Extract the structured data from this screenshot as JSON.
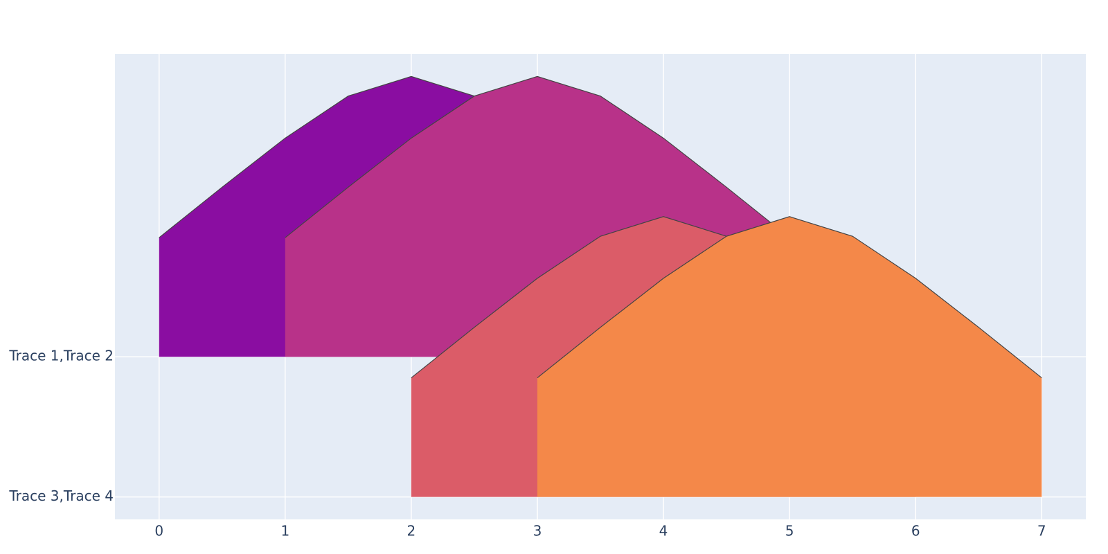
{
  "chart_data": {
    "type": "ridgeline",
    "xlim": [
      -0.35,
      7.35
    ],
    "xticks": [
      0,
      1,
      2,
      3,
      4,
      5,
      6,
      7
    ],
    "ylim": [
      -0.16,
      3.16
    ],
    "yticks": [
      {
        "value": 0,
        "label": "Trace 3,Trace 4"
      },
      {
        "value": 1,
        "label": "Trace 1,Trace 2"
      }
    ],
    "grid": true,
    "line_color": "#444444",
    "series": [
      {
        "name": "Trace 1",
        "color": "#8a0da1",
        "base": 1,
        "x": [
          0,
          0.5,
          1,
          1.5,
          2,
          2.5,
          3,
          3.5,
          4
        ],
        "values": [
          1.85,
          2.21,
          2.56,
          2.86,
          3.0,
          2.86,
          2.56,
          2.21,
          1.85
        ]
      },
      {
        "name": "Trace 2",
        "color": "#b83289",
        "base": 1,
        "x": [
          1,
          1.5,
          2,
          2.5,
          3,
          3.5,
          4,
          4.5,
          5
        ],
        "values": [
          1.85,
          2.21,
          2.56,
          2.86,
          3.0,
          2.86,
          2.56,
          2.21,
          1.85
        ]
      },
      {
        "name": "Trace 3",
        "color": "#db5c68",
        "base": 0,
        "x": [
          2,
          2.5,
          3,
          3.5,
          4,
          4.5,
          5,
          5.5,
          6
        ],
        "values": [
          0.85,
          1.21,
          1.56,
          1.86,
          2.0,
          1.86,
          1.56,
          1.21,
          0.85
        ]
      },
      {
        "name": "Trace 4",
        "color": "#f48849",
        "base": 0,
        "x": [
          3,
          3.5,
          4,
          4.5,
          5,
          5.5,
          6,
          6.5,
          7
        ],
        "values": [
          0.85,
          1.21,
          1.56,
          1.86,
          2.0,
          1.86,
          1.56,
          1.21,
          0.85
        ]
      }
    ]
  }
}
